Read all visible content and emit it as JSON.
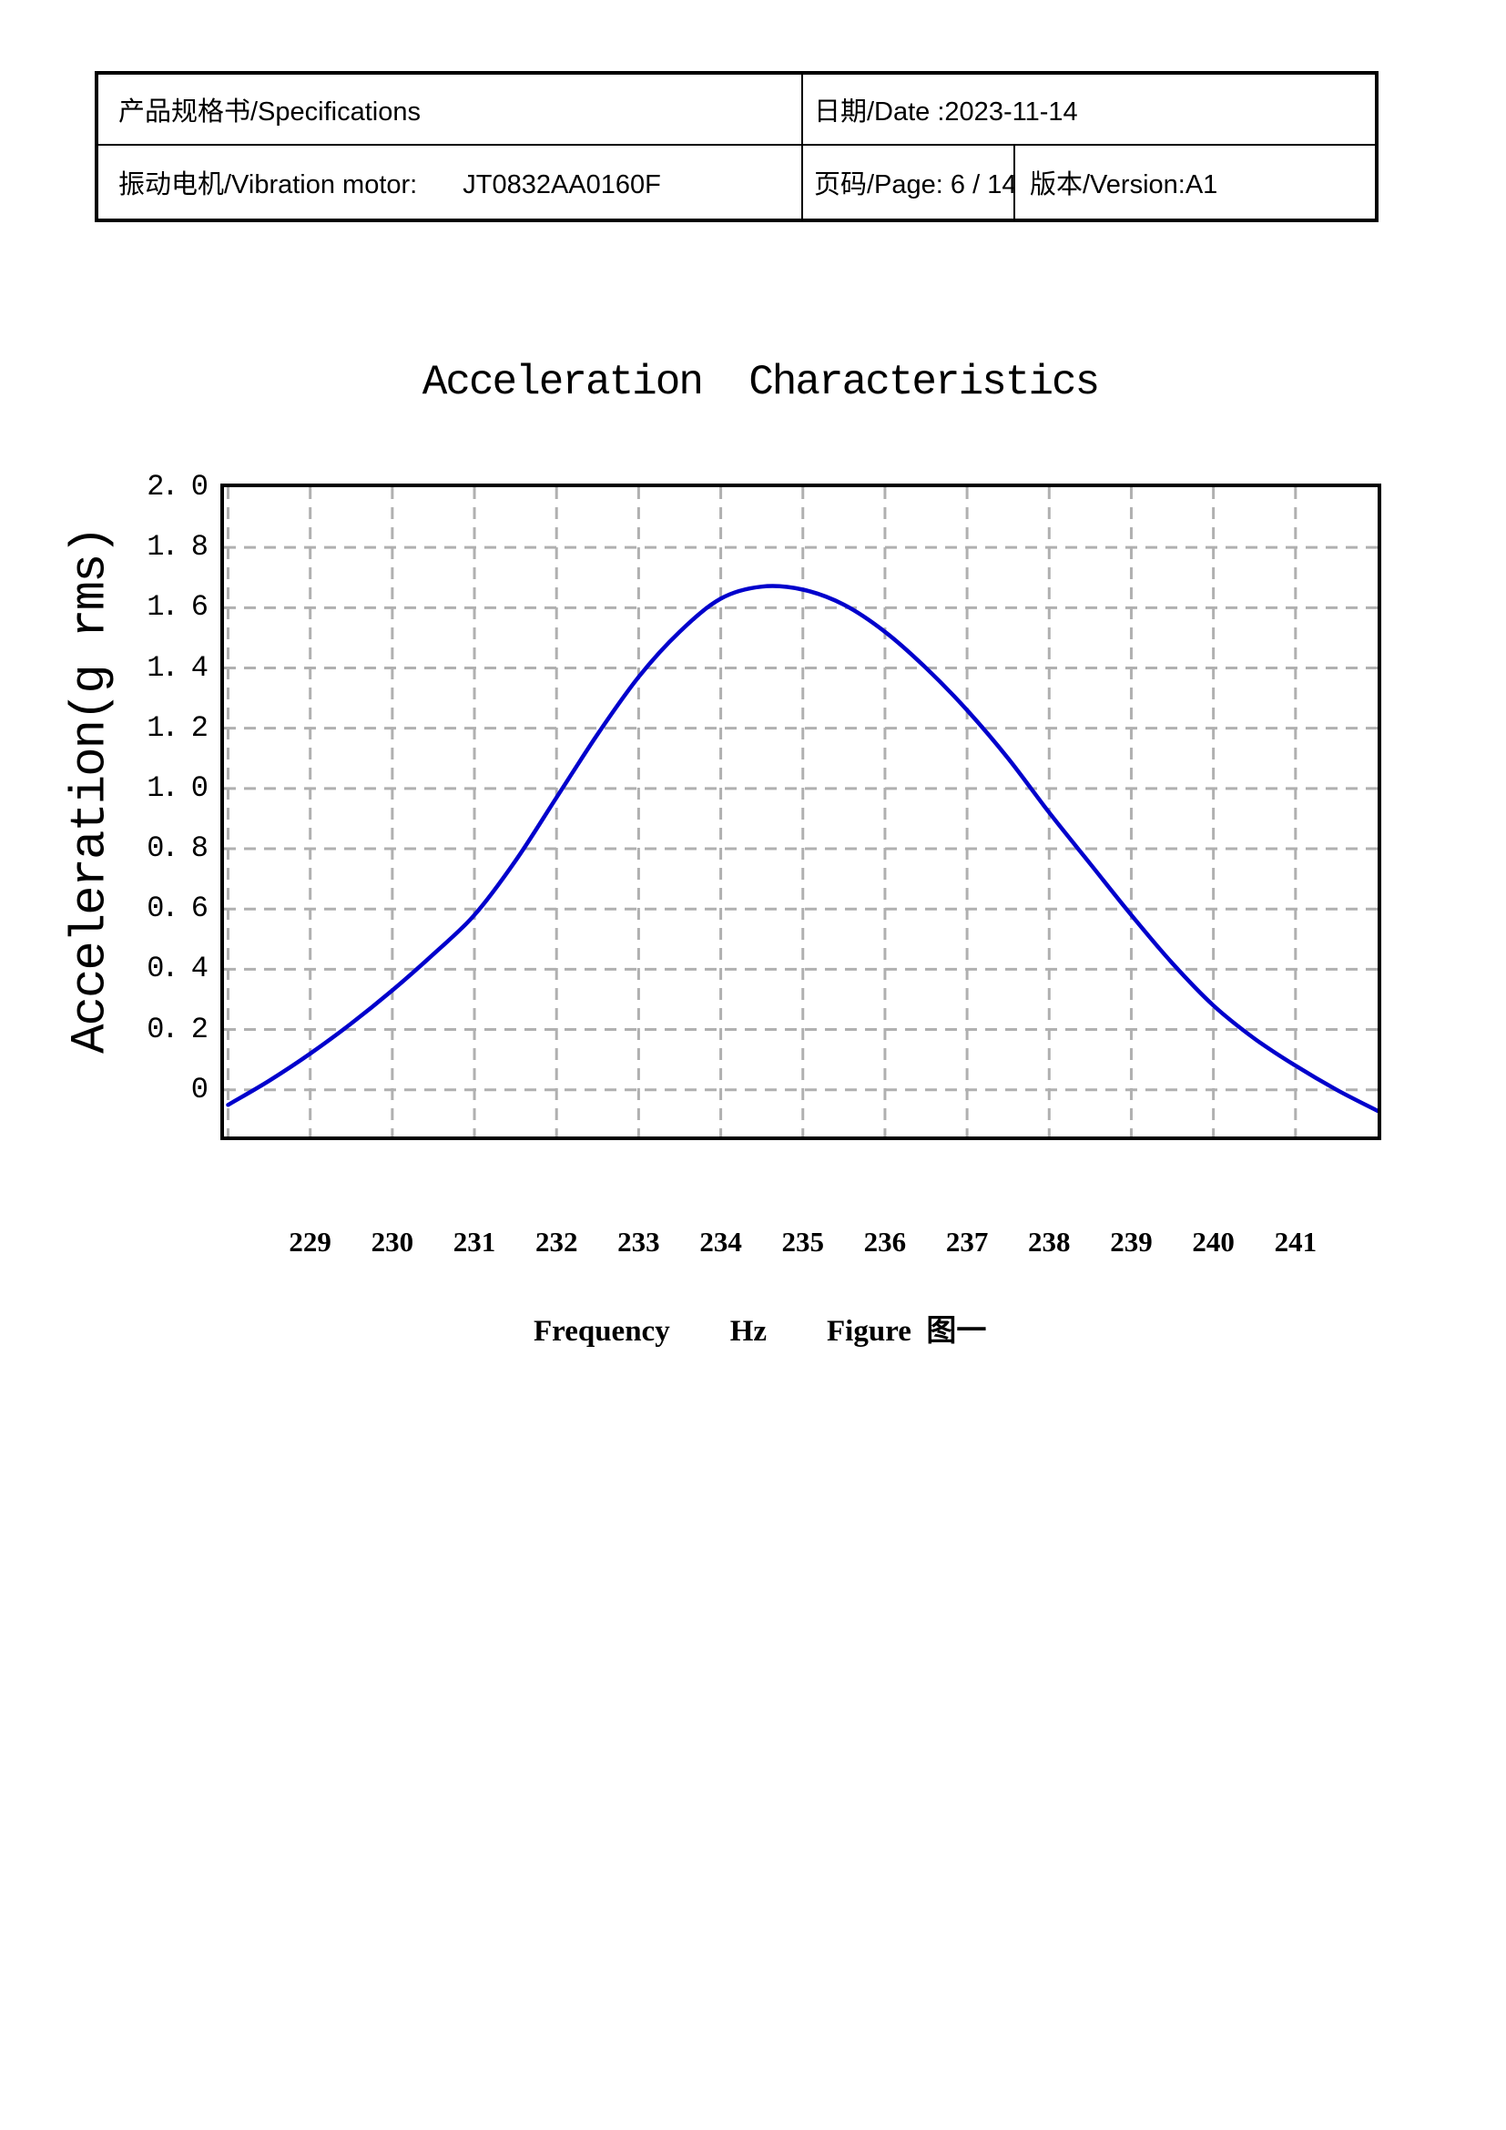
{
  "header_table": {
    "specs_label": "产品规格书/Specifications",
    "date_label": "日期/Date :2023-11-14",
    "motor_label": "振动电机/Vibration motor:",
    "motor_model": "JT0832AA0160F",
    "page_label": "页码/Page: 6 / 14",
    "version_label": "版本/Version:A1"
  },
  "figure": {
    "title": "Acceleration  Characteristics",
    "y_axis_title": "Acceleration(g rms)",
    "caption": "Frequency        Hz        Figure  图一",
    "y_tick_labels": [
      "2. 0",
      "1. 8",
      "1. 6",
      "1. 4",
      "1. 2",
      "1. 0",
      "0. 8",
      "0. 6",
      "0. 4",
      "0. 2",
      "0"
    ],
    "x_tick_labels": [
      "229",
      "230",
      "231",
      "232",
      "233",
      "234",
      "235",
      "236",
      "237",
      "238",
      "239",
      "240",
      "241"
    ]
  },
  "chart_data": {
    "type": "line",
    "title": "Acceleration  Characteristics",
    "xlabel": "Frequency  Hz",
    "ylabel": "Acceleration(g rms)",
    "annotation": "Figure 图一",
    "x": [
      228,
      228.5,
      229,
      229.5,
      230,
      230.5,
      231,
      231.5,
      232,
      232.5,
      233,
      233.5,
      234,
      234.5,
      235,
      235.5,
      236,
      236.5,
      237,
      237.5,
      238,
      238.5,
      239,
      239.5,
      240,
      240.5,
      241,
      241.5,
      242
    ],
    "series": [
      {
        "name": "acceleration",
        "color": "#0000cc",
        "values": [
          -0.05,
          0.03,
          0.12,
          0.22,
          0.33,
          0.45,
          0.58,
          0.76,
          0.97,
          1.18,
          1.37,
          1.52,
          1.63,
          1.67,
          1.66,
          1.61,
          1.52,
          1.4,
          1.26,
          1.1,
          0.92,
          0.75,
          0.58,
          0.42,
          0.28,
          0.17,
          0.08,
          0.0,
          -0.07
        ]
      }
    ],
    "xlim": [
      227.95,
      242.0
    ],
    "ylim": [
      -0.155,
      2.0
    ],
    "xticks": [
      229,
      230,
      231,
      232,
      233,
      234,
      235,
      236,
      237,
      238,
      239,
      240,
      241
    ],
    "yticks": [
      2.0,
      1.8,
      1.6,
      1.4,
      1.2,
      1.0,
      0.8,
      0.6,
      0.4,
      0.2,
      0
    ],
    "x_gridlines": [
      228,
      229,
      230,
      231,
      232,
      233,
      234,
      235,
      236,
      237,
      238,
      239,
      240,
      241
    ],
    "y_gridlines": [
      0,
      0.2,
      0.4,
      0.6,
      0.8,
      1.0,
      1.2,
      1.4,
      1.6,
      1.8
    ],
    "grid": "dashed",
    "grid_color": "#b0b0b0",
    "legend": "none"
  }
}
